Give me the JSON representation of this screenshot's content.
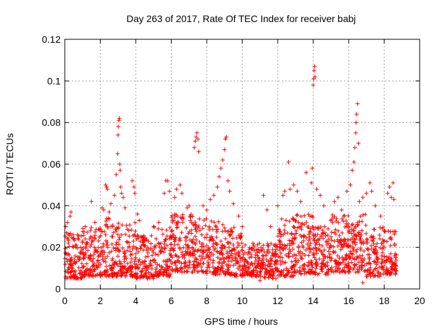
{
  "chart_data": {
    "type": "scatter",
    "title": "Day 263 of 2017, Rate Of TEC Index for receiver babj",
    "xlabel": "GPS time / hours",
    "ylabel": "ROTI / TECUs",
    "xlim": [
      0,
      20
    ],
    "ylim": [
      0,
      0.12
    ],
    "xticks": [
      "0",
      "2",
      "4",
      "6",
      "8",
      "10",
      "12",
      "14",
      "16",
      "18",
      "20"
    ],
    "yticks": [
      "0",
      "0.02",
      "0.04",
      "0.06",
      "0.08",
      "0.1",
      "0.12"
    ],
    "grid": true,
    "marker": "plus",
    "color": "#ff0000",
    "points": [
      [
        0.05,
        0.03
      ],
      [
        0.1,
        0.027
      ],
      [
        0.15,
        0.032
      ],
      [
        0.2,
        0.022
      ],
      [
        0.3,
        0.035
      ],
      [
        0.35,
        0.037
      ],
      [
        0.9,
        0.02
      ],
      [
        1.0,
        0.023
      ],
      [
        1.2,
        0.022
      ],
      [
        1.4,
        0.024
      ],
      [
        1.5,
        0.042
      ],
      [
        1.7,
        0.032
      ],
      [
        2.1,
        0.039
      ],
      [
        2.2,
        0.038
      ],
      [
        2.3,
        0.05
      ],
      [
        2.35,
        0.049
      ],
      [
        2.4,
        0.048
      ],
      [
        2.5,
        0.037
      ],
      [
        2.6,
        0.041
      ],
      [
        2.7,
        0.03
      ],
      [
        2.8,
        0.045
      ],
      [
        2.9,
        0.055
      ],
      [
        2.98,
        0.065
      ],
      [
        3.0,
        0.074
      ],
      [
        3.02,
        0.078
      ],
      [
        3.05,
        0.081
      ],
      [
        3.08,
        0.082
      ],
      [
        3.1,
        0.06
      ],
      [
        3.12,
        0.057
      ],
      [
        3.15,
        0.049
      ],
      [
        3.2,
        0.046
      ],
      [
        3.3,
        0.044
      ],
      [
        3.4,
        0.039
      ],
      [
        3.8,
        0.052
      ],
      [
        3.9,
        0.049
      ],
      [
        3.95,
        0.046
      ],
      [
        4.1,
        0.036
      ],
      [
        4.2,
        0.033
      ],
      [
        5.0,
        0.03
      ],
      [
        5.3,
        0.032
      ],
      [
        5.6,
        0.046
      ],
      [
        5.7,
        0.052
      ],
      [
        5.8,
        0.052
      ],
      [
        5.9,
        0.047
      ],
      [
        6.2,
        0.044
      ],
      [
        6.3,
        0.048
      ],
      [
        6.5,
        0.05
      ],
      [
        6.6,
        0.046
      ],
      [
        6.9,
        0.039
      ],
      [
        7.0,
        0.04
      ],
      [
        7.3,
        0.068
      ],
      [
        7.35,
        0.071
      ],
      [
        7.4,
        0.073
      ],
      [
        7.45,
        0.075
      ],
      [
        7.5,
        0.072
      ],
      [
        7.55,
        0.066
      ],
      [
        7.8,
        0.04
      ],
      [
        8.0,
        0.038
      ],
      [
        8.2,
        0.043
      ],
      [
        8.4,
        0.045
      ],
      [
        8.6,
        0.049
      ],
      [
        8.7,
        0.054
      ],
      [
        8.8,
        0.058
      ],
      [
        8.9,
        0.062
      ],
      [
        9.0,
        0.067
      ],
      [
        9.05,
        0.072
      ],
      [
        9.1,
        0.073
      ],
      [
        9.2,
        0.052
      ],
      [
        9.3,
        0.047
      ],
      [
        9.5,
        0.041
      ],
      [
        9.8,
        0.035
      ],
      [
        10.0,
        0.03
      ],
      [
        11.2,
        0.045
      ],
      [
        11.4,
        0.038
      ],
      [
        11.6,
        0.03
      ],
      [
        12.0,
        0.04
      ],
      [
        12.3,
        0.045
      ],
      [
        12.4,
        0.047
      ],
      [
        12.6,
        0.061
      ],
      [
        12.7,
        0.048
      ],
      [
        12.9,
        0.05
      ],
      [
        13.1,
        0.047
      ],
      [
        13.3,
        0.042
      ],
      [
        13.6,
        0.056
      ],
      [
        13.9,
        0.051
      ],
      [
        13.95,
        0.058
      ],
      [
        14.0,
        0.098
      ],
      [
        14.02,
        0.101
      ],
      [
        14.05,
        0.105
      ],
      [
        14.08,
        0.107
      ],
      [
        14.1,
        0.102
      ],
      [
        14.2,
        0.048
      ],
      [
        14.4,
        0.045
      ],
      [
        14.6,
        0.04
      ],
      [
        15.2,
        0.042
      ],
      [
        15.4,
        0.044
      ],
      [
        15.6,
        0.038
      ],
      [
        15.9,
        0.047
      ],
      [
        16.1,
        0.05
      ],
      [
        16.2,
        0.057
      ],
      [
        16.3,
        0.061
      ],
      [
        16.35,
        0.068
      ],
      [
        16.4,
        0.075
      ],
      [
        16.42,
        0.08
      ],
      [
        16.45,
        0.084
      ],
      [
        16.5,
        0.089
      ],
      [
        16.55,
        0.07
      ],
      [
        16.6,
        0.042
      ],
      [
        16.8,
        0.044
      ],
      [
        17.0,
        0.046
      ],
      [
        17.2,
        0.051
      ],
      [
        17.3,
        0.047
      ],
      [
        17.5,
        0.04
      ],
      [
        17.8,
        0.035
      ],
      [
        18.2,
        0.046
      ],
      [
        18.3,
        0.049
      ],
      [
        18.4,
        0.044
      ],
      [
        18.5,
        0.051
      ],
      [
        18.55,
        0.043
      ],
      [
        16.8,
        0.003
      ],
      [
        17.0,
        0.006
      ],
      [
        11.0,
        0.004
      ]
    ],
    "bands": [
      {
        "x0": 0.0,
        "x1": 1.0,
        "lo": 0.005,
        "hi": 0.027
      },
      {
        "x0": 1.0,
        "x1": 2.0,
        "lo": 0.006,
        "hi": 0.03
      },
      {
        "x0": 2.0,
        "x1": 3.0,
        "lo": 0.006,
        "hi": 0.034
      },
      {
        "x0": 3.0,
        "x1": 4.0,
        "lo": 0.006,
        "hi": 0.032
      },
      {
        "x0": 4.0,
        "x1": 5.0,
        "lo": 0.005,
        "hi": 0.026
      },
      {
        "x0": 5.0,
        "x1": 6.0,
        "lo": 0.006,
        "hi": 0.03
      },
      {
        "x0": 6.0,
        "x1": 7.0,
        "lo": 0.008,
        "hi": 0.036
      },
      {
        "x0": 7.0,
        "x1": 8.0,
        "lo": 0.008,
        "hi": 0.036
      },
      {
        "x0": 8.0,
        "x1": 9.0,
        "lo": 0.007,
        "hi": 0.033
      },
      {
        "x0": 9.0,
        "x1": 10.0,
        "lo": 0.006,
        "hi": 0.03
      },
      {
        "x0": 10.0,
        "x1": 11.0,
        "lo": 0.006,
        "hi": 0.022
      },
      {
        "x0": 11.0,
        "x1": 12.0,
        "lo": 0.005,
        "hi": 0.022
      },
      {
        "x0": 12.0,
        "x1": 13.0,
        "lo": 0.006,
        "hi": 0.034
      },
      {
        "x0": 13.0,
        "x1": 14.0,
        "lo": 0.007,
        "hi": 0.036
      },
      {
        "x0": 14.0,
        "x1": 15.0,
        "lo": 0.007,
        "hi": 0.03
      },
      {
        "x0": 15.0,
        "x1": 16.0,
        "lo": 0.008,
        "hi": 0.036
      },
      {
        "x0": 16.0,
        "x1": 17.0,
        "lo": 0.008,
        "hi": 0.036
      },
      {
        "x0": 17.0,
        "x1": 18.0,
        "lo": 0.006,
        "hi": 0.03
      },
      {
        "x0": 18.0,
        "x1": 18.7,
        "lo": 0.007,
        "hi": 0.028
      }
    ]
  }
}
